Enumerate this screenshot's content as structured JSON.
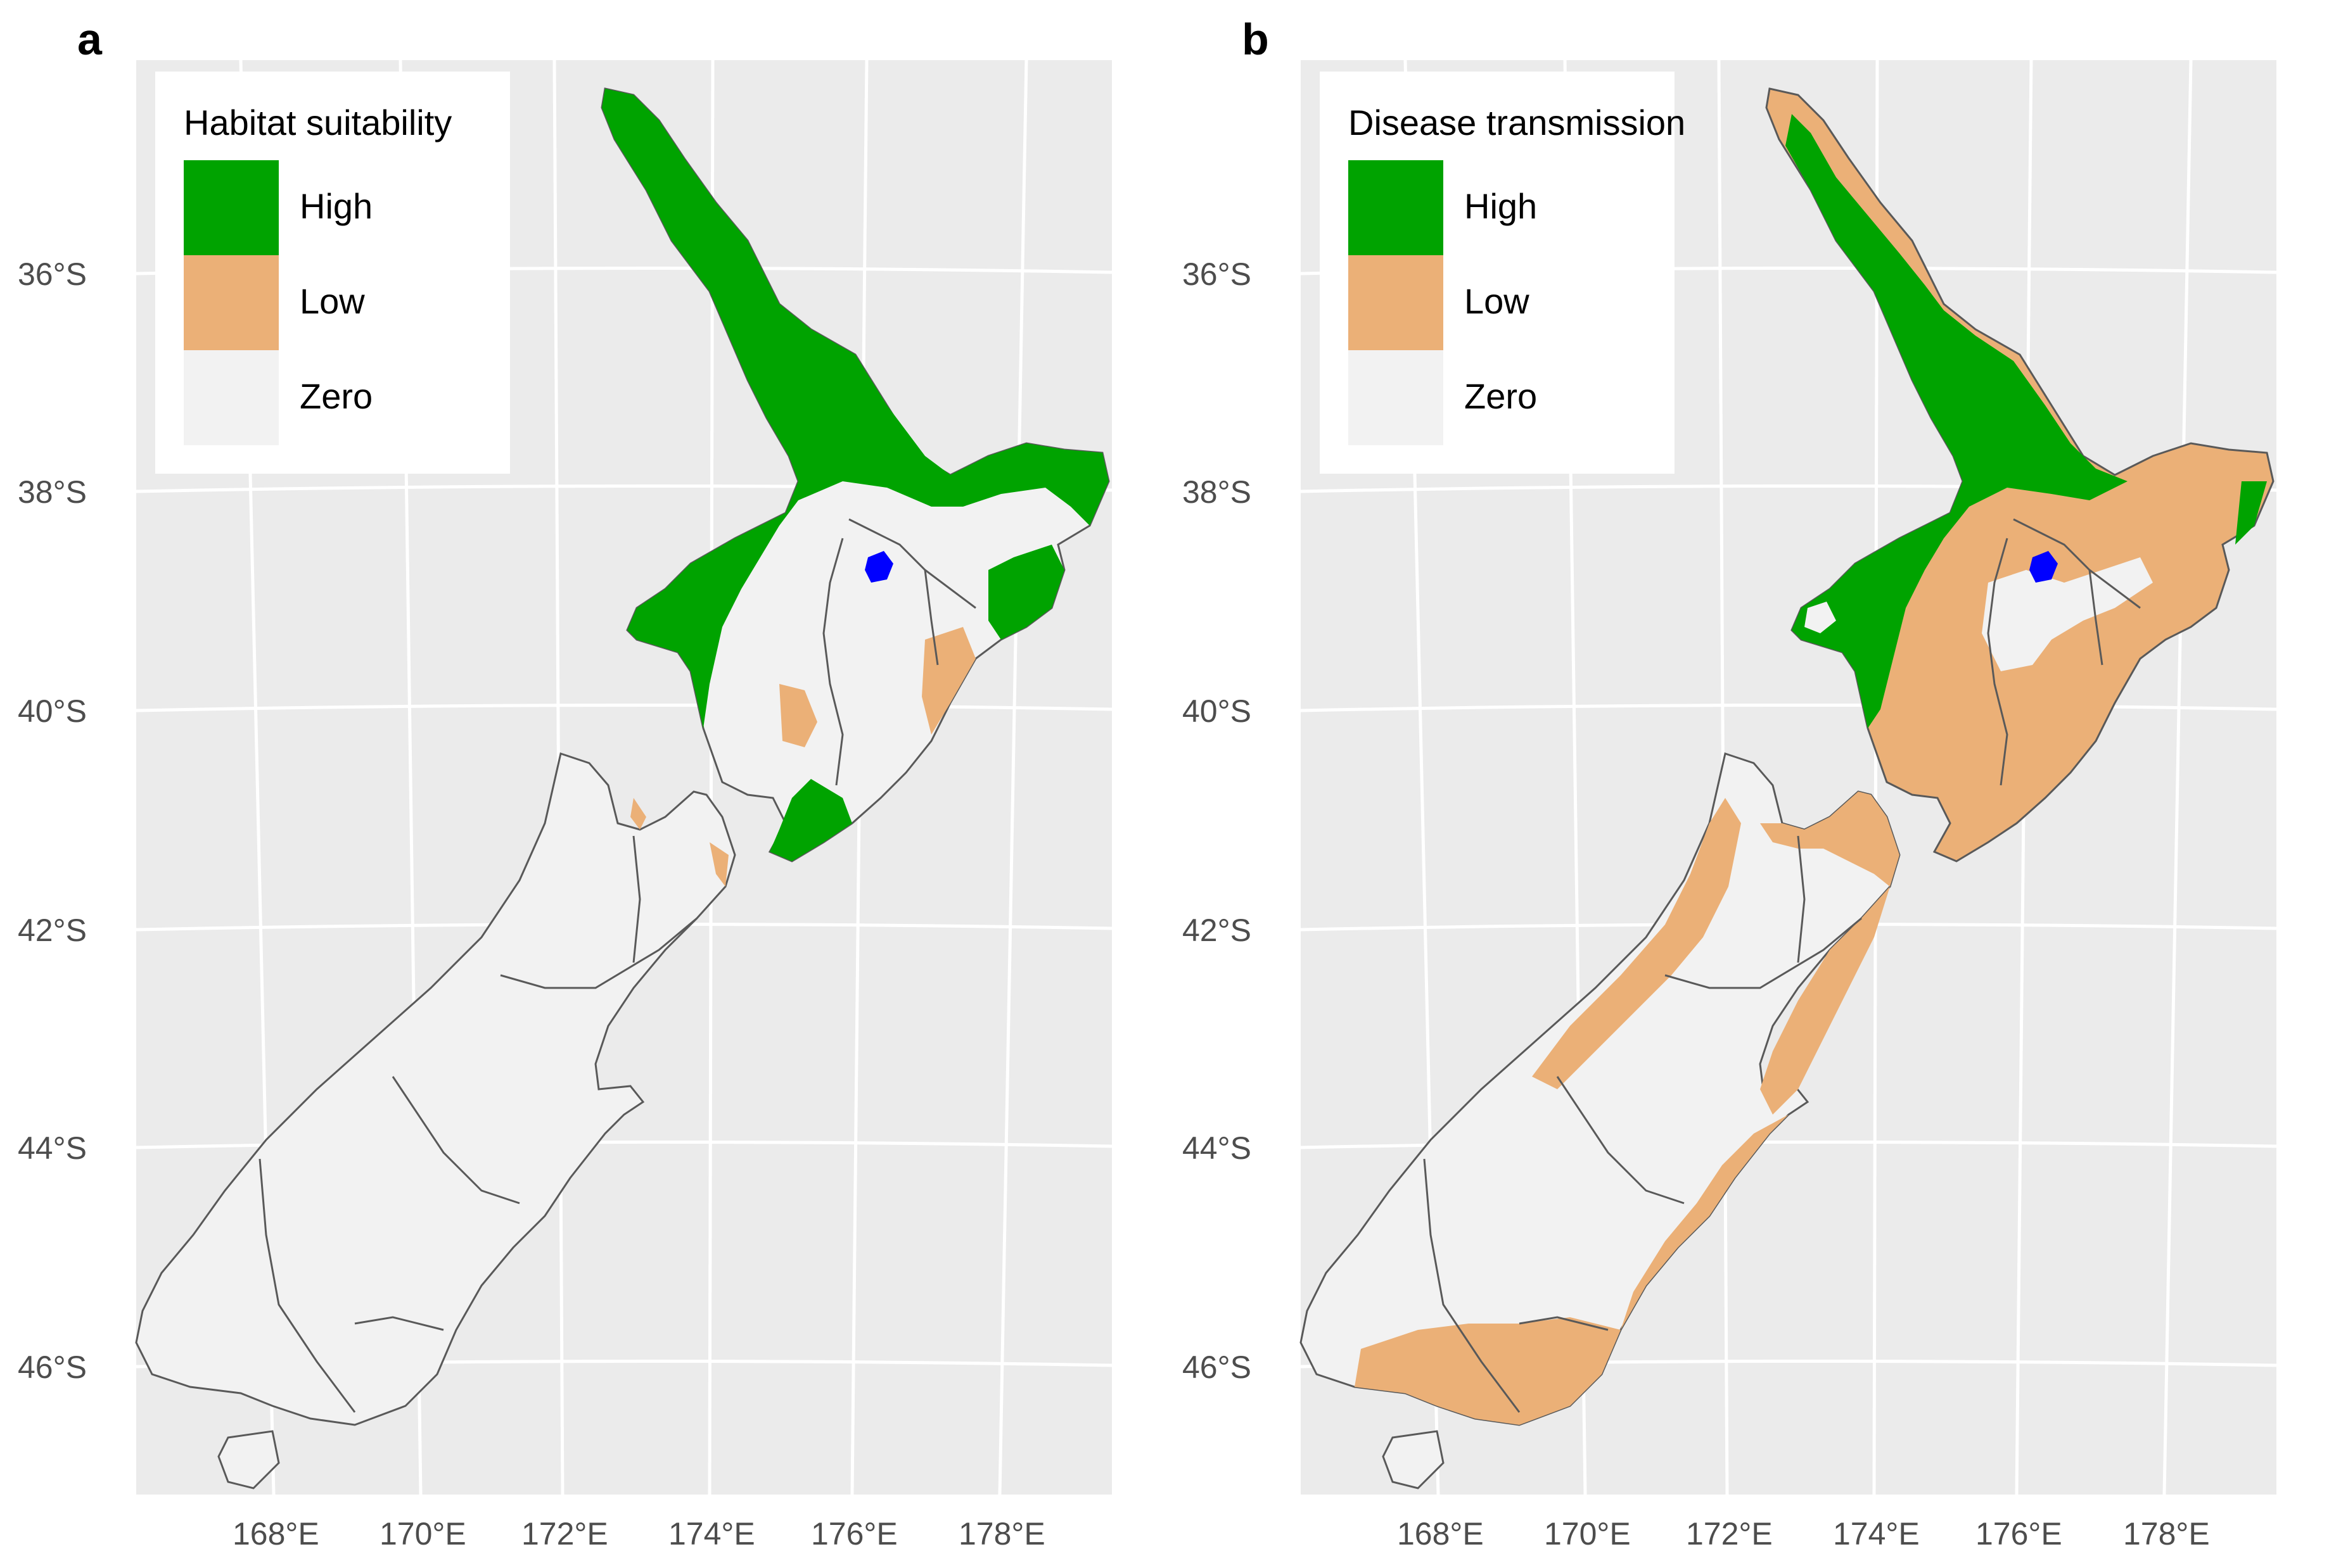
{
  "colors": {
    "high": "#00a300",
    "low": "#ebb077",
    "zero": "#f2f2f2",
    "lake": "#0000ff",
    "panel_background": "#ebebeb",
    "grid": "#ffffff",
    "border": "#595959"
  },
  "axes": {
    "lat_labels": [
      "36°S",
      "38°S",
      "40°S",
      "42°S",
      "44°S",
      "46°S"
    ],
    "lon_labels": [
      "168°E",
      "170°E",
      "172°E",
      "174°E",
      "176°E",
      "178°E"
    ]
  },
  "legend": {
    "levels": [
      "High",
      "Low",
      "Zero"
    ]
  },
  "panels": [
    {
      "letter": "a",
      "legend_title": "Habitat suitability",
      "north_island_base": "zero",
      "south_island_base": "zero"
    },
    {
      "letter": "b",
      "legend_title": "Disease transmission",
      "north_island_base": "low",
      "south_island_base": "zero"
    }
  ]
}
